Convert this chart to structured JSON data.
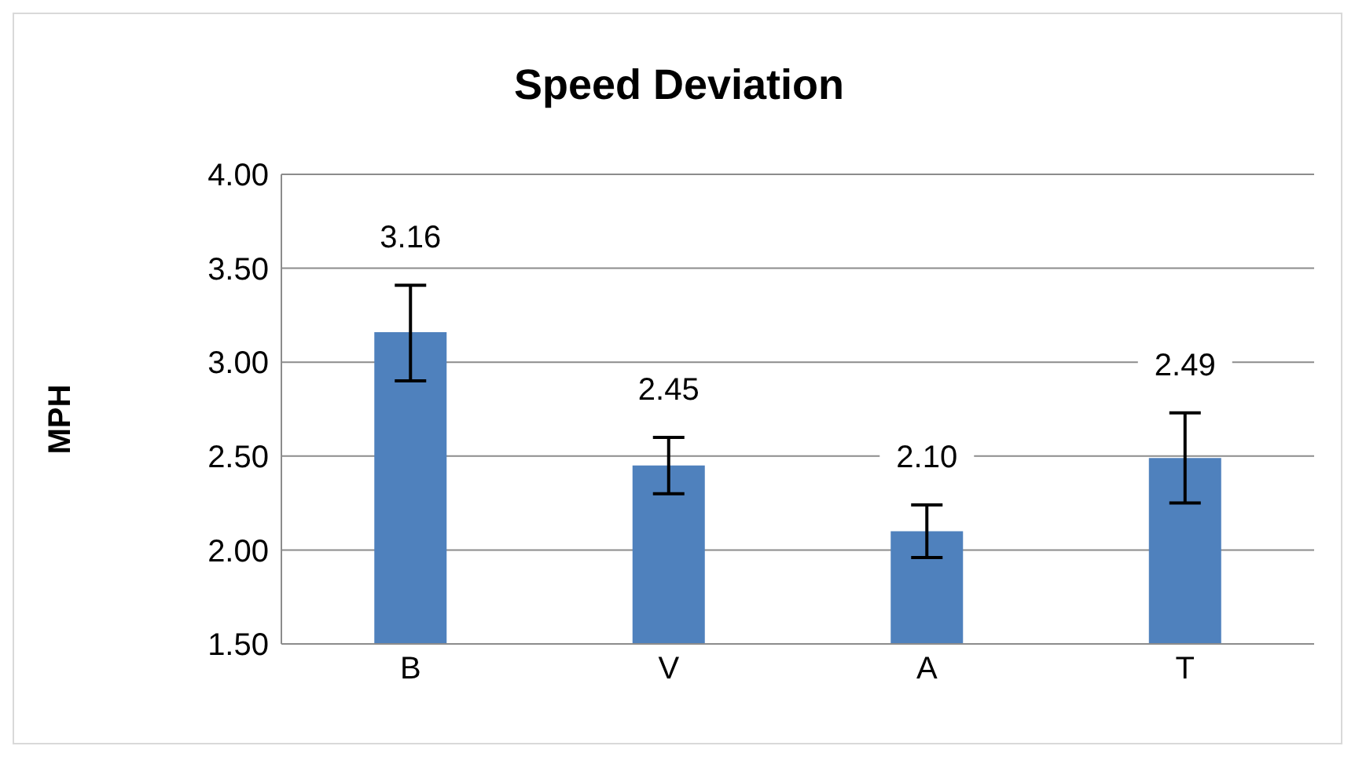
{
  "chart_data": {
    "type": "bar",
    "title": "Speed Deviation",
    "ylabel": "MPH",
    "categories": [
      "B",
      "V",
      "A",
      "T"
    ],
    "values": [
      3.16,
      2.45,
      2.1,
      2.49
    ],
    "value_labels": [
      "3.16",
      "2.45",
      "2.10",
      "2.49"
    ],
    "errors": [
      [
        2.9,
        3.41
      ],
      [
        2.3,
        2.6
      ],
      [
        1.96,
        2.24
      ],
      [
        2.25,
        2.73
      ]
    ],
    "color": "#4f81bd",
    "ylim": [
      1.5,
      4.0
    ],
    "yticks": [
      {
        "value": 1.5,
        "label": "1.50"
      },
      {
        "value": 2.0,
        "label": "2.00"
      },
      {
        "value": 2.5,
        "label": "2.50"
      },
      {
        "value": 3.0,
        "label": "3.00"
      },
      {
        "value": 3.5,
        "label": "3.50"
      },
      {
        "value": 4.0,
        "label": "4.00"
      }
    ],
    "grid": "y",
    "legend": false
  }
}
